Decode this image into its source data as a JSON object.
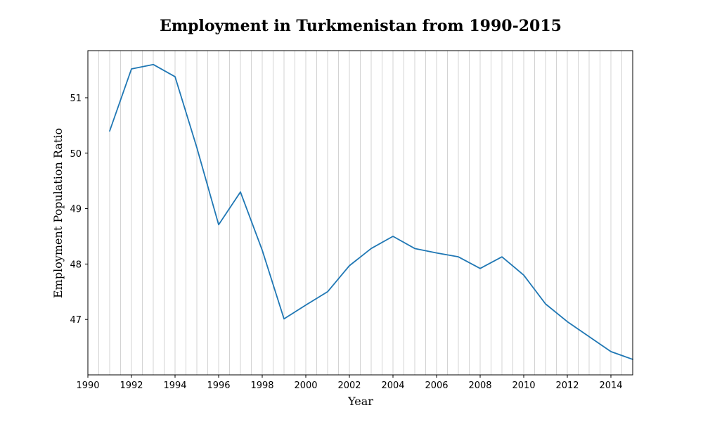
{
  "chart_data": {
    "type": "line",
    "title": "Employment in Turkmenistan from 1990-2015",
    "xlabel": "Year",
    "ylabel": "Employment Population Ratio",
    "xlim": [
      1990,
      2015
    ],
    "ylim": [
      46.0,
      51.85
    ],
    "xticks": [
      1990,
      1992,
      1994,
      1996,
      1998,
      2000,
      2002,
      2004,
      2006,
      2008,
      2010,
      2012,
      2014
    ],
    "yticks": [
      47,
      48,
      49,
      50,
      51
    ],
    "grid": "vertical minor gridlines every half year",
    "series": [
      {
        "color": "#1f77b4",
        "x": [
          1991,
          1992,
          1993,
          1994,
          1995,
          1996,
          1997,
          1998,
          1999,
          2000,
          2001,
          2002,
          2003,
          2004,
          2005,
          2006,
          2007,
          2008,
          2009,
          2010,
          2011,
          2012,
          2013,
          2014,
          2015
        ],
        "y": [
          50.4,
          51.52,
          51.6,
          51.38,
          50.1,
          48.71,
          49.3,
          48.25,
          47.01,
          47.26,
          47.5,
          47.97,
          48.28,
          48.5,
          48.28,
          48.2,
          48.13,
          47.92,
          48.13,
          47.8,
          47.28,
          46.96,
          46.69,
          46.42,
          46.28
        ]
      }
    ]
  }
}
